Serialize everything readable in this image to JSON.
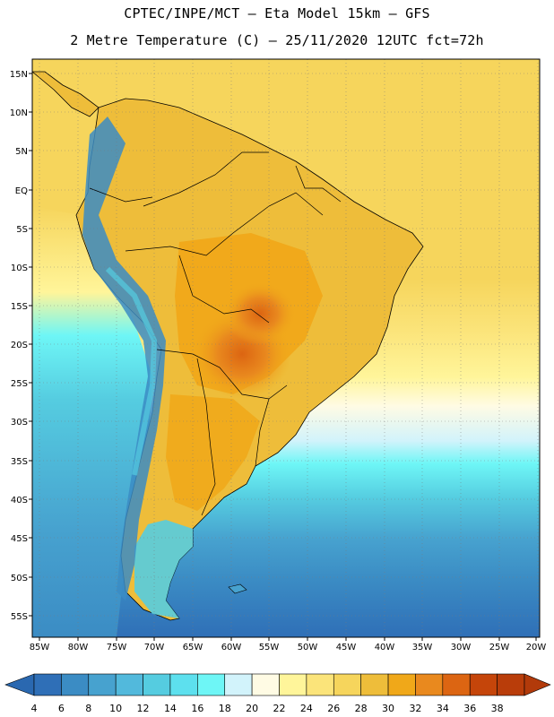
{
  "header": {
    "title_line1": "CPTEC/INPE/MCT –  Eta Model 15km – GFS",
    "title_line2": "2 Metre Temperature (C) – 25/11/2020 12UTC fct=72h"
  },
  "map": {
    "lat_labels": [
      "15N",
      "10N",
      "5N",
      "EQ",
      "5S",
      "10S",
      "15S",
      "20S",
      "25S",
      "30S",
      "35S",
      "40S",
      "45S",
      "50S",
      "55S"
    ],
    "lon_labels": [
      "85W",
      "80W",
      "75W",
      "70W",
      "65W",
      "60W",
      "55W",
      "50W",
      "45W",
      "40W",
      "35W",
      "30W",
      "25W",
      "20W"
    ]
  },
  "colorbar": {
    "values": [
      "4",
      "6",
      "8",
      "10",
      "12",
      "14",
      "16",
      "18",
      "20",
      "22",
      "24",
      "26",
      "28",
      "30",
      "32",
      "34",
      "36",
      "38"
    ],
    "colors": [
      "#2f6fb7",
      "#3b8cc4",
      "#47a2cf",
      "#52b9dc",
      "#55cce0",
      "#5de0ee",
      "#6ef6f6",
      "#d2f3fb",
      "#fffbe4",
      "#fff59a",
      "#fbe47a",
      "#f6d55c",
      "#eebd3a",
      "#f0a819",
      "#e9891e",
      "#dc6512",
      "#c5450a",
      "#b93d0a"
    ],
    "left_arrow_color": "#2a68b0",
    "right_arrow_color": "#b23a0a"
  },
  "colors": {
    "ocean_north": "#f6d55c",
    "ocean_south_cold": "#2f6fb7",
    "land_hot": "#e9891e",
    "land_warm": "#eebd3a",
    "andes": "#3b8cc4"
  }
}
